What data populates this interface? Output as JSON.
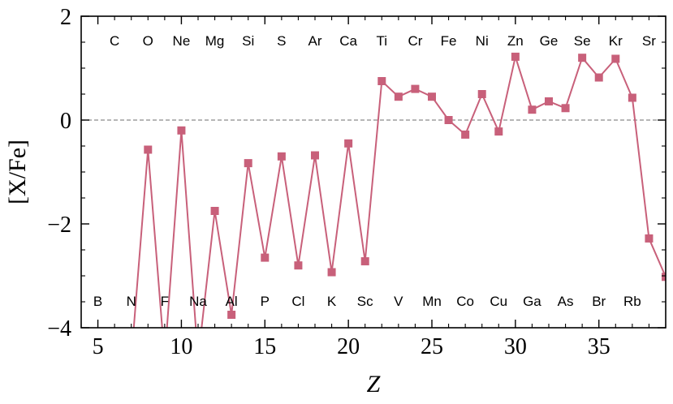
{
  "chart_data": {
    "type": "line",
    "xlabel": "Z",
    "ylabel": "[X/Fe]",
    "xlim": [
      4,
      39
    ],
    "ylim": [
      -4,
      2
    ],
    "xticks": [
      5,
      10,
      15,
      20,
      25,
      30,
      35
    ],
    "yticks": [
      -4,
      -2,
      0,
      2
    ],
    "ytick_labels": [
      "−4",
      "−2",
      "0",
      "2"
    ],
    "reference_line": 0,
    "series_color": "#c8607a",
    "series": [
      {
        "points": [
          {
            "x": 7,
            "y": -4.6
          },
          {
            "x": 8,
            "y": -0.57
          },
          {
            "x": 9,
            "y": -4.6
          },
          {
            "x": 10,
            "y": -0.2
          },
          {
            "x": 11,
            "y": -4.6
          },
          {
            "x": 12,
            "y": -1.75
          },
          {
            "x": 13,
            "y": -3.75
          },
          {
            "x": 14,
            "y": -0.83
          },
          {
            "x": 15,
            "y": -2.65
          },
          {
            "x": 16,
            "y": -0.7
          },
          {
            "x": 17,
            "y": -2.8
          },
          {
            "x": 18,
            "y": -0.68
          },
          {
            "x": 19,
            "y": -2.93
          },
          {
            "x": 20,
            "y": -0.45
          },
          {
            "x": 21,
            "y": -2.72
          },
          {
            "x": 22,
            "y": 0.75
          },
          {
            "x": 23,
            "y": 0.45
          },
          {
            "x": 24,
            "y": 0.6
          },
          {
            "x": 25,
            "y": 0.45
          },
          {
            "x": 26,
            "y": 0.0
          },
          {
            "x": 27,
            "y": -0.28
          },
          {
            "x": 28,
            "y": 0.5
          },
          {
            "x": 29,
            "y": -0.22
          },
          {
            "x": 30,
            "y": 1.22
          },
          {
            "x": 31,
            "y": 0.2
          },
          {
            "x": 32,
            "y": 0.36
          },
          {
            "x": 33,
            "y": 0.23
          },
          {
            "x": 34,
            "y": 1.2
          },
          {
            "x": 35,
            "y": 0.82
          },
          {
            "x": 36,
            "y": 1.18
          },
          {
            "x": 37,
            "y": 0.43
          },
          {
            "x": 38,
            "y": -2.28
          },
          {
            "x": 39,
            "y": -3.02
          }
        ],
        "hidden_markers_x": [
          7,
          9,
          11
        ]
      }
    ],
    "element_labels_top": [
      {
        "z": 6,
        "label": "C"
      },
      {
        "z": 8,
        "label": "O"
      },
      {
        "z": 10,
        "label": "Ne"
      },
      {
        "z": 12,
        "label": "Mg"
      },
      {
        "z": 14,
        "label": "Si"
      },
      {
        "z": 16,
        "label": "S"
      },
      {
        "z": 18,
        "label": "Ar"
      },
      {
        "z": 20,
        "label": "Ca"
      },
      {
        "z": 22,
        "label": "Ti"
      },
      {
        "z": 24,
        "label": "Cr"
      },
      {
        "z": 26,
        "label": "Fe"
      },
      {
        "z": 28,
        "label": "Ni"
      },
      {
        "z": 30,
        "label": "Zn"
      },
      {
        "z": 32,
        "label": "Ge"
      },
      {
        "z": 34,
        "label": "Se"
      },
      {
        "z": 36,
        "label": "Kr"
      },
      {
        "z": 38,
        "label": "Sr"
      }
    ],
    "element_labels_bottom": [
      {
        "z": 5,
        "label": "B"
      },
      {
        "z": 7,
        "label": "N"
      },
      {
        "z": 9,
        "label": "F"
      },
      {
        "z": 11,
        "label": "Na"
      },
      {
        "z": 13,
        "label": "Al"
      },
      {
        "z": 15,
        "label": "P"
      },
      {
        "z": 17,
        "label": "Cl"
      },
      {
        "z": 19,
        "label": "K"
      },
      {
        "z": 21,
        "label": "Sc"
      },
      {
        "z": 23,
        "label": "V"
      },
      {
        "z": 25,
        "label": "Mn"
      },
      {
        "z": 27,
        "label": "Co"
      },
      {
        "z": 29,
        "label": "Cu"
      },
      {
        "z": 31,
        "label": "Ga"
      },
      {
        "z": 33,
        "label": "As"
      },
      {
        "z": 35,
        "label": "Br"
      },
      {
        "z": 37,
        "label": "Rb"
      }
    ]
  }
}
